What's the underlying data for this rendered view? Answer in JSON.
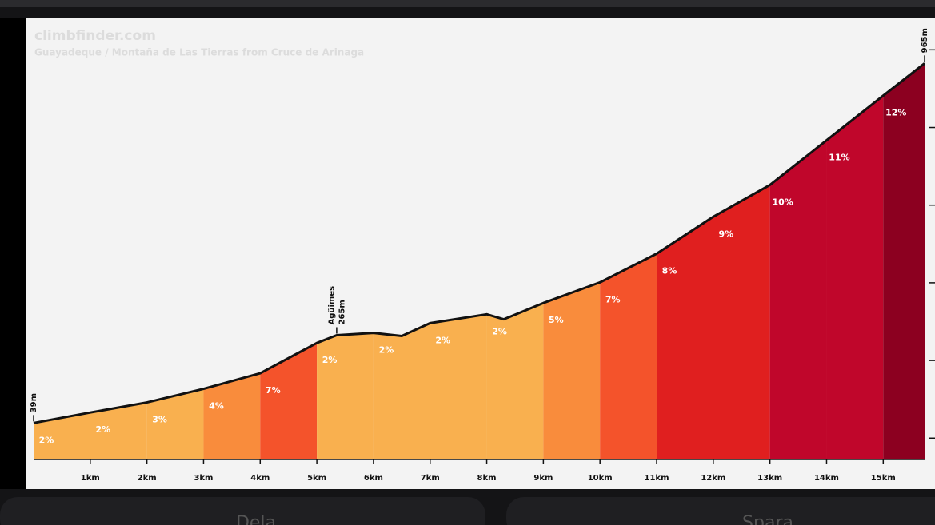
{
  "chart_data": {
    "type": "profile",
    "title": "climbfinder.com",
    "subtitle": "Guayadeque / Montaña de Las Tierras from Cruce de Arinaga",
    "x": [
      0,
      1,
      2,
      3,
      4,
      5,
      5.35,
      6,
      6.5,
      7,
      8,
      8.3,
      9,
      10,
      11,
      12,
      13,
      14,
      15,
      15.73
    ],
    "elevation": [
      39,
      66,
      92,
      127,
      167,
      245,
      265,
      271,
      263,
      296,
      319,
      306,
      348,
      401,
      475,
      570,
      652,
      767,
      882,
      965
    ],
    "segment_bounds": [
      0,
      1,
      2,
      3,
      4,
      5,
      6,
      7,
      8,
      9,
      10,
      11,
      12,
      13,
      14,
      15,
      15.73
    ],
    "grades": [
      2,
      2,
      3,
      4,
      7,
      2,
      2,
      2,
      2,
      5,
      7,
      8,
      9,
      10,
      11,
      12
    ],
    "grade_labels": [
      "2%",
      "2%",
      "3%",
      "4%",
      "7%",
      "2%",
      "2%",
      "2%",
      "2%",
      "5%",
      "7%",
      "8%",
      "9%",
      "10%",
      "11%",
      "12%"
    ],
    "grade_colors": [
      "#f9b04f",
      "#f9b04f",
      "#f9b04f",
      "#f98c3c",
      "#f4532b",
      "#f9b04f",
      "#f9b04f",
      "#f9b04f",
      "#f9b04f",
      "#f98c3c",
      "#f4532b",
      "#e01f1f",
      "#e01f1f",
      "#c0062b",
      "#c0062b",
      "#8c0020"
    ],
    "line_color": "#111111",
    "xlim": [
      0,
      15.73
    ],
    "ylim": [
      -55,
      1083
    ],
    "xticks": [
      {
        "value": 1,
        "label": "1km"
      },
      {
        "value": 2,
        "label": "2km"
      },
      {
        "value": 3,
        "label": "3km"
      },
      {
        "value": 4,
        "label": "4km"
      },
      {
        "value": 5,
        "label": "5km"
      },
      {
        "value": 6,
        "label": "6km"
      },
      {
        "value": 7,
        "label": "7km"
      },
      {
        "value": 8,
        "label": "8km"
      },
      {
        "value": 9,
        "label": "9km"
      },
      {
        "value": 10,
        "label": "10km"
      },
      {
        "value": 11,
        "label": "11km"
      },
      {
        "value": 12,
        "label": "12km"
      },
      {
        "value": 13,
        "label": "13km"
      },
      {
        "value": 14,
        "label": "14km"
      },
      {
        "value": 15,
        "label": "15km"
      }
    ],
    "yticks": [
      0,
      200,
      400,
      600,
      800,
      1000
    ],
    "annotations": [
      {
        "x": 0,
        "elevation": 39,
        "lines": [
          "39m"
        ]
      },
      {
        "x": 5.35,
        "elevation": 265,
        "lines": [
          "Agüimes",
          "265m"
        ]
      },
      {
        "x": 15.73,
        "elevation": 965,
        "lines": [
          "965m"
        ]
      }
    ]
  },
  "buttons": [
    "Dela",
    "Spara"
  ]
}
